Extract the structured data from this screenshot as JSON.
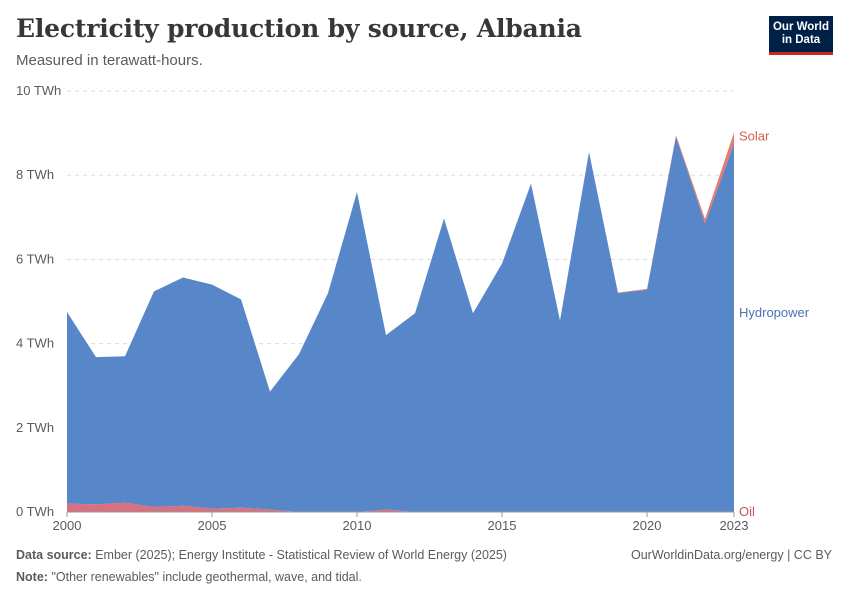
{
  "header": {
    "title": "Electricity production by source, Albania",
    "subtitle": "Measured in terawatt-hours.",
    "logo_line1": "Our World",
    "logo_line2": "in Data"
  },
  "footer": {
    "source_label": "Data source:",
    "source_text": "Ember (2025); Energy Institute - Statistical Review of World Energy (2025)",
    "note_label": "Note:",
    "note_text": "\"Other renewables\" include geothermal, wave, and tidal.",
    "credit": "OurWorldinData.org/energy | CC BY"
  },
  "colors": {
    "hydro": "#5787c9",
    "oil": "#d8707f",
    "solar": "#e77a6e",
    "hydro_label": "#4a73b3",
    "oil_label": "#c4525f",
    "solar_label": "#d9604f",
    "grid": "#dddddd",
    "axis": "#999999"
  },
  "chart_data": {
    "type": "area",
    "stacked": true,
    "title": "Electricity production by source, Albania",
    "ylabel": "TWh",
    "xlim": [
      2000,
      2023
    ],
    "ylim": [
      0,
      10
    ],
    "y_ticks": [
      0,
      2,
      4,
      6,
      8,
      10
    ],
    "y_tick_labels": [
      "0 TWh",
      "2 TWh",
      "4 TWh",
      "6 TWh",
      "8 TWh",
      "10 TWh"
    ],
    "x_ticks": [
      2000,
      2005,
      2010,
      2015,
      2020,
      2023
    ],
    "x_tick_labels": [
      "2000",
      "2005",
      "2010",
      "2015",
      "2020",
      "2023"
    ],
    "x": [
      2000,
      2001,
      2002,
      2003,
      2004,
      2005,
      2006,
      2007,
      2008,
      2009,
      2010,
      2011,
      2012,
      2013,
      2014,
      2015,
      2016,
      2017,
      2018,
      2019,
      2020,
      2021,
      2022,
      2023
    ],
    "series": [
      {
        "name": "Oil",
        "values": [
          0.2,
          0.18,
          0.22,
          0.12,
          0.15,
          0.08,
          0.1,
          0.06,
          0.0,
          0.0,
          0.0,
          0.06,
          0.0,
          0.0,
          0.0,
          0.0,
          0.0,
          0.0,
          0.0,
          0.0,
          0.0,
          0.0,
          0.0,
          0.0
        ]
      },
      {
        "name": "Hydropower",
        "values": [
          4.55,
          3.5,
          3.48,
          5.12,
          5.42,
          5.32,
          4.95,
          2.8,
          3.75,
          5.2,
          7.6,
          4.14,
          4.72,
          6.97,
          4.72,
          5.9,
          7.8,
          4.55,
          8.55,
          5.2,
          5.28,
          8.92,
          6.86,
          8.75
        ]
      },
      {
        "name": "Solar",
        "values": [
          0,
          0,
          0,
          0,
          0,
          0,
          0,
          0,
          0,
          0,
          0,
          0,
          0,
          0,
          0,
          0,
          0,
          0,
          0,
          0.01,
          0.02,
          0.03,
          0.1,
          0.26
        ]
      }
    ],
    "legend": {
      "position": "right",
      "labels": [
        "Solar",
        "Hydropower",
        "Oil"
      ]
    }
  }
}
